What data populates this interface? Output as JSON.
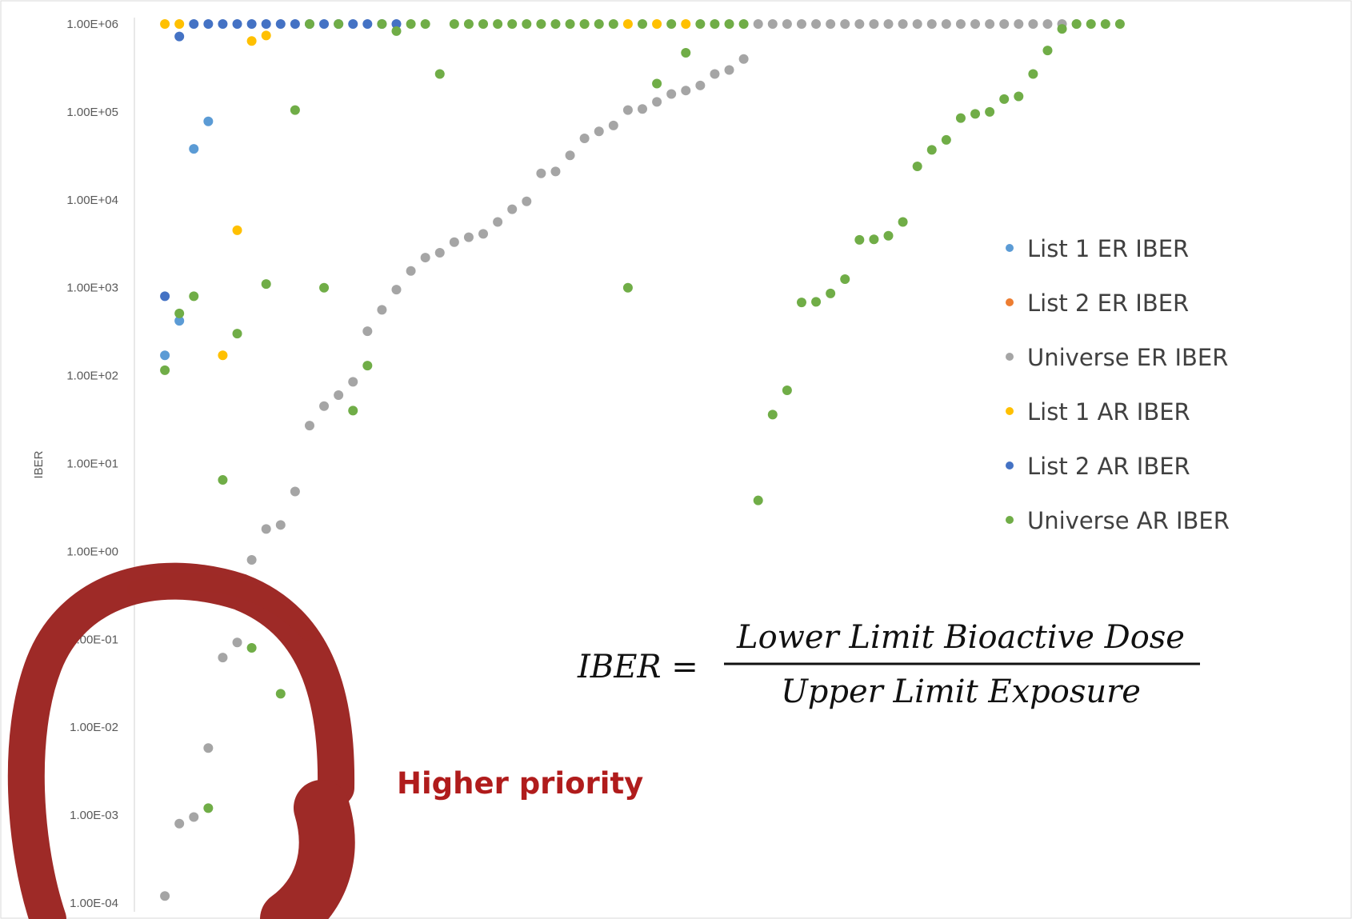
{
  "chart_data": {
    "type": "scatter",
    "ylabel": "IBER",
    "yscale": "log",
    "ylim": [
      0.0001,
      1000000
    ],
    "y_ticks": [
      "1.00E+06",
      "1.00E+05",
      "1.00E+04",
      "1.00E+03",
      "1.00E+02",
      "1.00E+01",
      "1.00E+00",
      "1.00E-01",
      "1.00E-02",
      "1.00E-03",
      "1.00E-04"
    ],
    "xlim": [
      0,
      68
    ],
    "x_axis_labels_visible": false,
    "gridlines": false,
    "legend_position": "right",
    "series": [
      {
        "name": "List 1 ER IBER",
        "color": "#5b9bd5",
        "points": [
          [
            1,
            170
          ],
          [
            2,
            420
          ],
          [
            3,
            38000
          ],
          [
            4,
            78000
          ]
        ]
      },
      {
        "name": "List 2 ER IBER",
        "color": "#ed7d31",
        "points": []
      },
      {
        "name": "Universe ER IBER",
        "color": "#a5a5a5",
        "points": [
          [
            1,
            0.00012
          ],
          [
            2,
            0.0008
          ],
          [
            3,
            0.00095
          ],
          [
            4,
            0.0058
          ],
          [
            5,
            0.062
          ],
          [
            6,
            0.092
          ],
          [
            7,
            0.8
          ],
          [
            8,
            1.8
          ],
          [
            9,
            2.0
          ],
          [
            10,
            4.8
          ],
          [
            11,
            27
          ],
          [
            12,
            45
          ],
          [
            13,
            60
          ],
          [
            14,
            85
          ],
          [
            15,
            320
          ],
          [
            16,
            560
          ],
          [
            17,
            950
          ],
          [
            18,
            1550
          ],
          [
            19,
            2200
          ],
          [
            20,
            2500
          ],
          [
            21,
            3300
          ],
          [
            22,
            3750
          ],
          [
            23,
            4100
          ],
          [
            24,
            5600
          ],
          [
            25,
            7800
          ],
          [
            26,
            9600
          ],
          [
            27,
            20000
          ],
          [
            28,
            21000
          ],
          [
            29,
            32000
          ],
          [
            30,
            50000
          ],
          [
            31,
            60000
          ],
          [
            32,
            70000
          ],
          [
            33,
            105000
          ],
          [
            34,
            108000
          ],
          [
            35,
            130000
          ],
          [
            36,
            160000
          ],
          [
            37,
            175000
          ],
          [
            38,
            200000
          ],
          [
            39,
            270000
          ],
          [
            40,
            300000
          ],
          [
            41,
            400000
          ],
          [
            42,
            1000000
          ],
          [
            43,
            1000000
          ],
          [
            44,
            1000000
          ],
          [
            45,
            1000000
          ],
          [
            46,
            1000000
          ],
          [
            47,
            1000000
          ],
          [
            48,
            1000000
          ],
          [
            49,
            1000000
          ],
          [
            50,
            1000000
          ],
          [
            51,
            1000000
          ],
          [
            52,
            1000000
          ],
          [
            53,
            1000000
          ],
          [
            54,
            1000000
          ],
          [
            55,
            1000000
          ],
          [
            56,
            1000000
          ],
          [
            57,
            1000000
          ],
          [
            58,
            1000000
          ],
          [
            59,
            1000000
          ],
          [
            60,
            1000000
          ],
          [
            61,
            1000000
          ],
          [
            62,
            1000000
          ],
          [
            63,
            1000000
          ],
          [
            64,
            1000000
          ]
        ]
      },
      {
        "name": "List 1 AR IBER",
        "color": "#ffc000",
        "points": [
          [
            1,
            1000000
          ],
          [
            2,
            1000000
          ],
          [
            5,
            170
          ],
          [
            6,
            4500
          ],
          [
            7,
            640000
          ],
          [
            8,
            740000
          ],
          [
            30,
            1000000
          ],
          [
            33,
            1000000
          ],
          [
            35,
            1000000
          ],
          [
            37,
            1000000
          ]
        ]
      },
      {
        "name": "List 2 AR IBER",
        "color": "#4472c4",
        "points": [
          [
            1,
            800
          ],
          [
            2,
            720000
          ],
          [
            3,
            1000000
          ],
          [
            4,
            1000000
          ],
          [
            5,
            1000000
          ],
          [
            6,
            1000000
          ],
          [
            7,
            1000000
          ],
          [
            8,
            1000000
          ],
          [
            9,
            1000000
          ],
          [
            10,
            1000000
          ],
          [
            11,
            1000000
          ],
          [
            12,
            1000000
          ],
          [
            13,
            1000000
          ],
          [
            14,
            1000000
          ],
          [
            15,
            1000000
          ],
          [
            16,
            1000000
          ],
          [
            17,
            1000000
          ]
        ]
      },
      {
        "name": "Universe AR IBER",
        "color": "#70ad47",
        "points": [
          [
            1,
            115
          ],
          [
            2,
            510
          ],
          [
            3,
            800
          ],
          [
            4,
            0.0012
          ],
          [
            5,
            6.5
          ],
          [
            6,
            300
          ],
          [
            7,
            0.08
          ],
          [
            8,
            1100
          ],
          [
            9,
            0.024
          ],
          [
            10,
            105000
          ],
          [
            11,
            1000000
          ],
          [
            12,
            1000
          ],
          [
            13,
            1000000
          ],
          [
            14,
            40
          ],
          [
            15,
            130
          ],
          [
            16,
            1000000
          ],
          [
            17,
            830000
          ],
          [
            18,
            1000000
          ],
          [
            19,
            1000000
          ],
          [
            20,
            270000
          ],
          [
            21,
            1000000
          ],
          [
            22,
            1000000
          ],
          [
            23,
            1000000
          ],
          [
            24,
            1000000
          ],
          [
            25,
            1000000
          ],
          [
            26,
            1000000
          ],
          [
            27,
            1000000
          ],
          [
            28,
            1000000
          ],
          [
            29,
            1000000
          ],
          [
            30,
            1000000
          ],
          [
            31,
            1000000
          ],
          [
            32,
            1000000
          ],
          [
            33,
            1000
          ],
          [
            34,
            1000000
          ],
          [
            35,
            210000
          ],
          [
            36,
            1000000
          ],
          [
            37,
            470000
          ],
          [
            38,
            1000000
          ],
          [
            39,
            1000000
          ],
          [
            40,
            1000000
          ],
          [
            41,
            1000000
          ],
          [
            42,
            3.8
          ],
          [
            43,
            36
          ],
          [
            44,
            68
          ],
          [
            45,
            680
          ],
          [
            46,
            690
          ],
          [
            47,
            860
          ],
          [
            48,
            1250
          ],
          [
            49,
            3500
          ],
          [
            50,
            3550
          ],
          [
            51,
            3900
          ],
          [
            52,
            5600
          ],
          [
            53,
            24000
          ],
          [
            54,
            37000
          ],
          [
            55,
            48000
          ],
          [
            56,
            85000
          ],
          [
            57,
            95000
          ],
          [
            58,
            100000
          ],
          [
            59,
            140000
          ],
          [
            60,
            150000
          ],
          [
            61,
            270000
          ],
          [
            62,
            500000
          ],
          [
            63,
            880000
          ],
          [
            64,
            1000000
          ],
          [
            65,
            1000000
          ],
          [
            66,
            1000000
          ],
          [
            67,
            1000000
          ]
        ]
      }
    ]
  },
  "formula": {
    "lhs": "IBER =",
    "numerator": "Lower Limit Bioactive Dose",
    "denominator": "Upper Limit Exposure"
  },
  "annotation": {
    "text": "Higher priority",
    "color": "#a02723"
  }
}
